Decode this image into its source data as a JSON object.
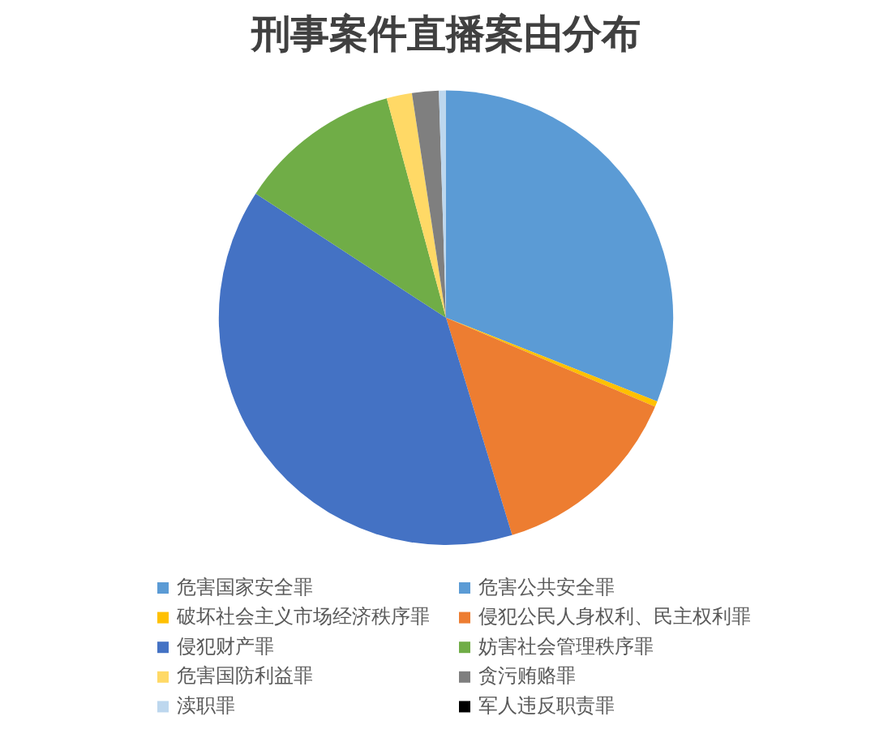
{
  "chart_data": {
    "type": "pie",
    "title": "刑事案件直播案由分布",
    "categories": [
      "危害国家安全罪",
      "危害公共安全罪",
      "破坏社会主义市场经济秩序罪",
      "侵犯公民人身权利、民主权利罪",
      "侵犯财产罪",
      "妨害社会管理秩序罪",
      "危害国防利益罪",
      "贪污贿赂罪",
      "渎职罪",
      "军人违反职责罪"
    ],
    "values": [
      0,
      31.0,
      0.4,
      13.9,
      38.9,
      11.6,
      1.8,
      1.9,
      0.5,
      0
    ],
    "colors": [
      "#5b9bd5",
      "#5b9bd5",
      "#ffc000",
      "#ed7d31",
      "#4472c4",
      "#70ad47",
      "#ffd966",
      "#7f7f7f",
      "#bdd7ee",
      "#000000"
    ],
    "legend": "bottom"
  }
}
